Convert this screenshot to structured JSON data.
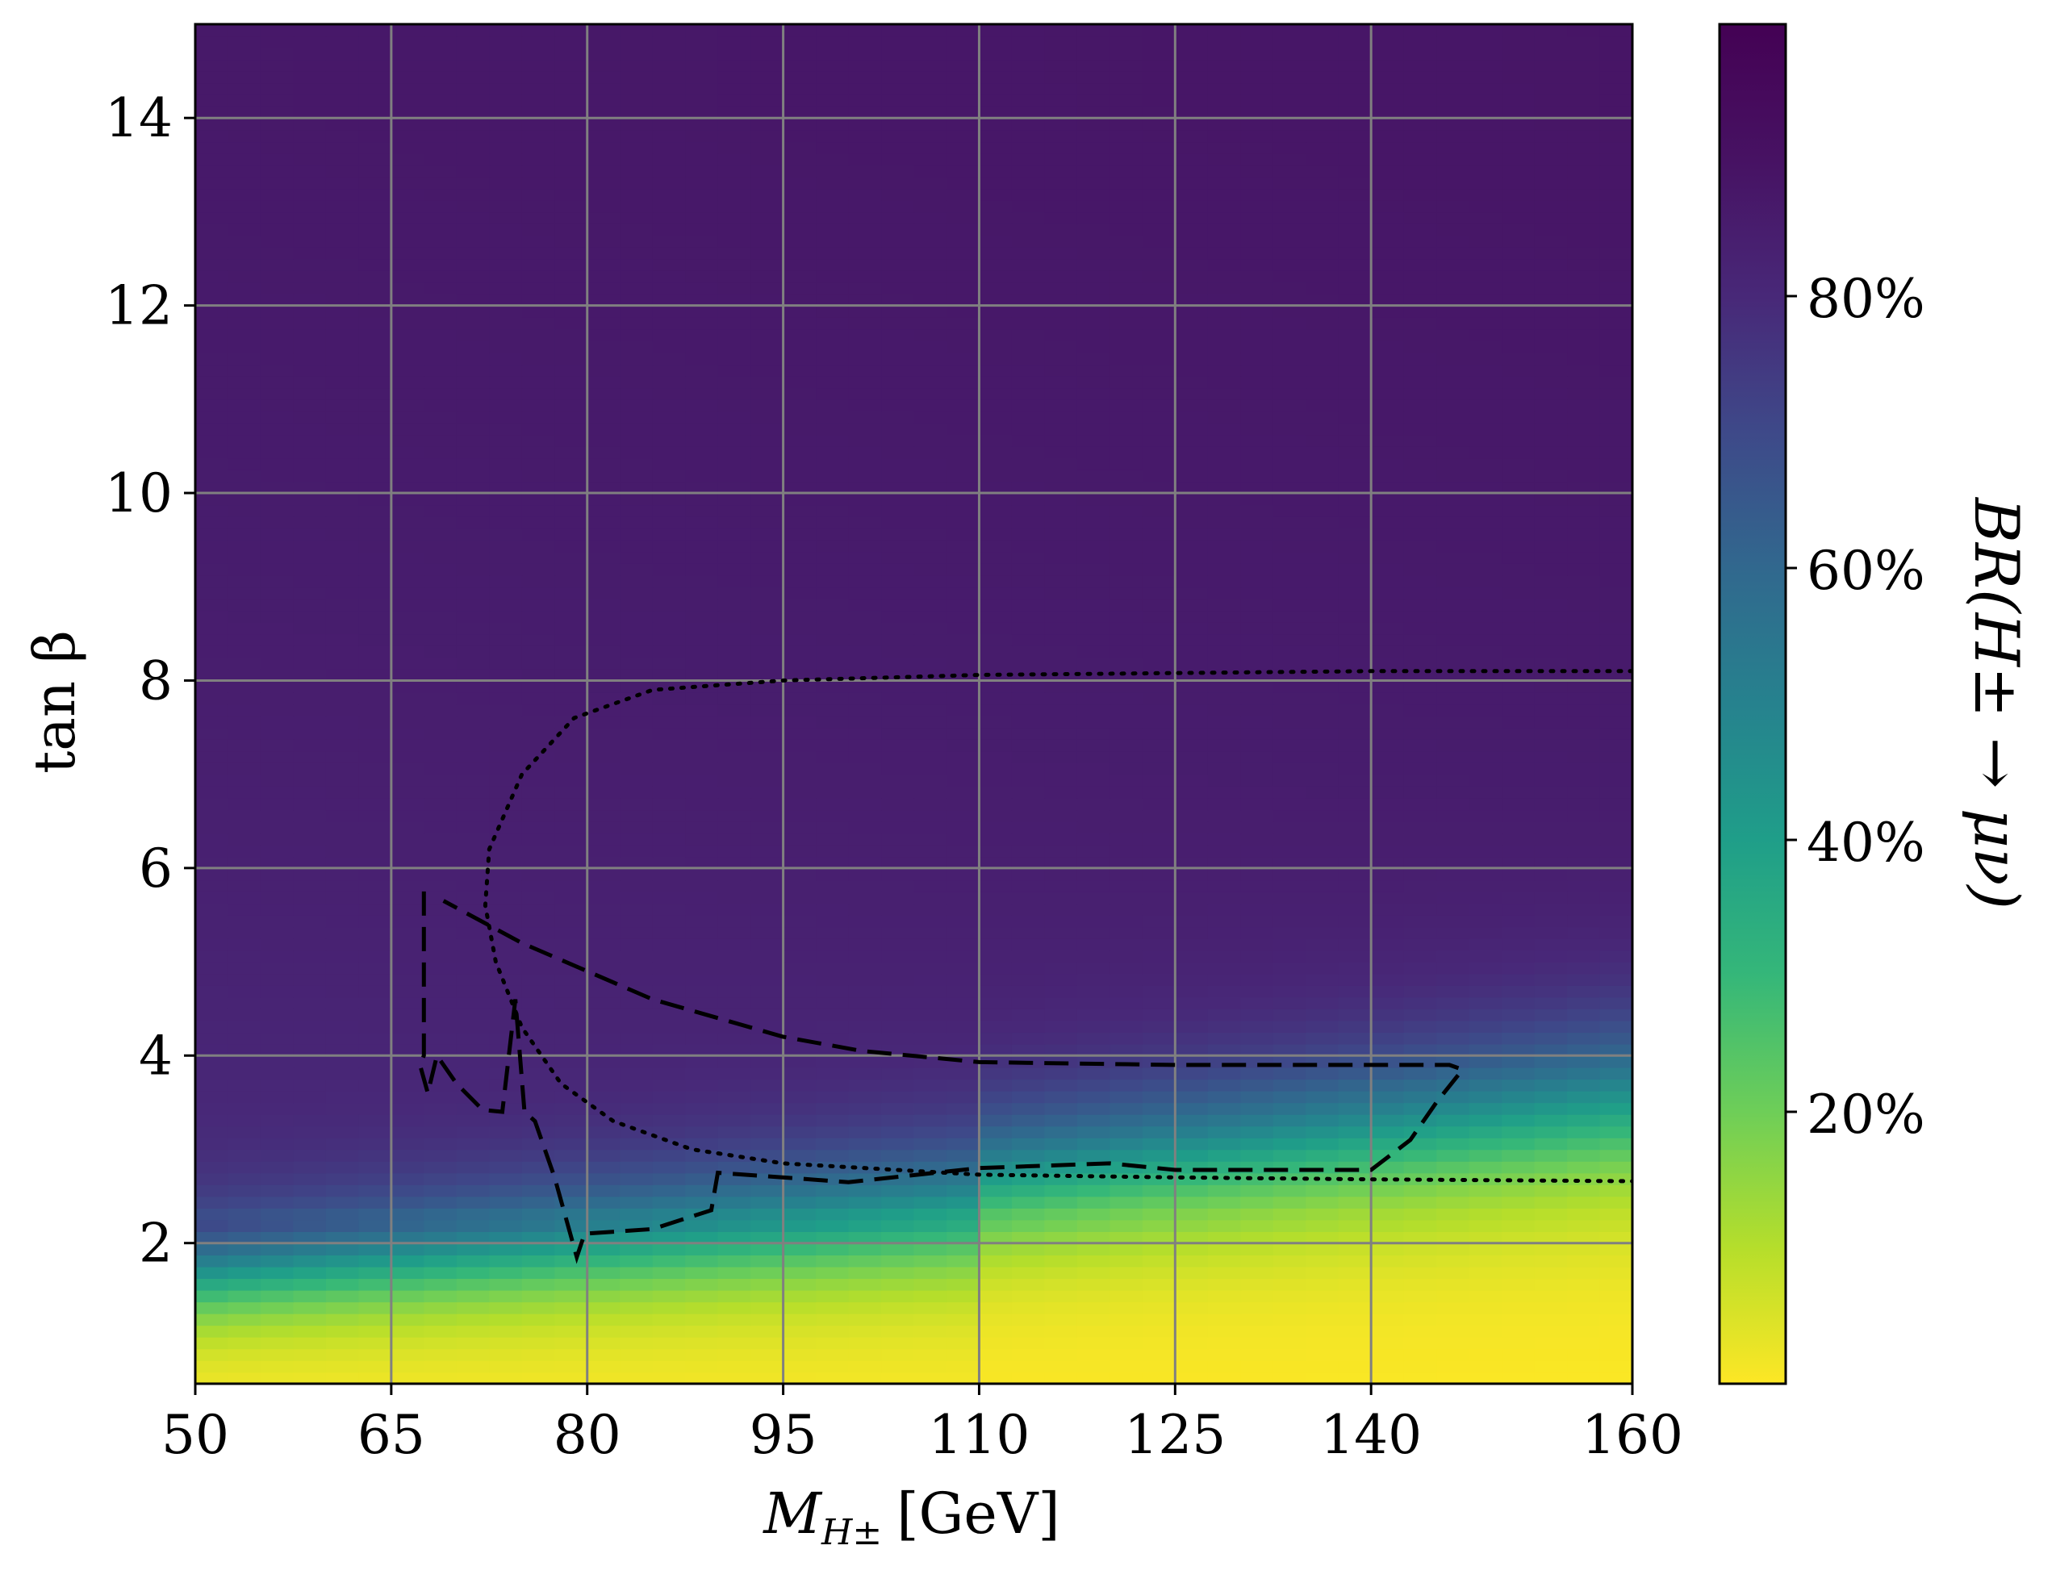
{
  "chart_data": {
    "type": "heatmap",
    "title": "",
    "xlabel_main": "M",
    "xlabel_sub": "H±",
    "xlabel_unit": "[GeV]",
    "ylabel": "tan β",
    "colorbar_label": "BR(H± → μν)",
    "xlim": [
      50,
      160
    ],
    "ylim": [
      0.5,
      15
    ],
    "x_ticks": [
      50,
      65,
      80,
      95,
      110,
      125,
      140,
      160
    ],
    "x_tick_labels": [
      "50",
      "65",
      "80",
      "95",
      "110",
      "125",
      "140",
      "160"
    ],
    "y_ticks": [
      2,
      4,
      6,
      8,
      10,
      12,
      14
    ],
    "y_tick_labels": [
      "2",
      "4",
      "6",
      "8",
      "10",
      "12",
      "14"
    ],
    "colorbar": {
      "colormap": "viridis_r",
      "range": [
        0,
        100
      ],
      "ticks": [
        20,
        40,
        60,
        80
      ],
      "tick_labels": [
        "20%",
        "40%",
        "60%",
        "80%"
      ]
    },
    "grid": true,
    "heatmap_model": {
      "description_values": "branching ratio rises from ~0% at tanβ≈0.5 to ~85% above tanβ≈4",
      "low_value": 0,
      "plateau_value": 84
    },
    "contours": [
      {
        "style": "dotted",
        "points": [
          [
            160,
            8.1
          ],
          [
            140,
            8.1
          ],
          [
            125,
            8.08
          ],
          [
            110,
            8.06
          ],
          [
            95,
            8.0
          ],
          [
            85,
            7.9
          ],
          [
            79,
            7.6
          ],
          [
            75,
            7.0
          ],
          [
            72.5,
            6.2
          ],
          [
            72.2,
            5.6
          ],
          [
            73,
            5.0
          ],
          [
            75,
            4.3
          ],
          [
            78,
            3.7
          ],
          [
            82,
            3.3
          ],
          [
            88,
            3.0
          ],
          [
            95,
            2.85
          ],
          [
            110,
            2.73
          ],
          [
            125,
            2.7
          ],
          [
            140,
            2.68
          ],
          [
            160,
            2.66
          ]
        ]
      },
      {
        "style": "dashed",
        "points": [
          [
            67.5,
            5.75
          ],
          [
            67.5,
            4.0
          ],
          [
            67.2,
            3.9
          ],
          [
            67.8,
            3.6
          ],
          [
            68.5,
            4.0
          ],
          [
            70,
            3.7
          ],
          [
            72,
            3.42
          ],
          [
            73.5,
            3.4
          ],
          [
            74.5,
            4.6
          ],
          [
            75.2,
            3.4
          ],
          [
            76,
            3.3
          ],
          [
            77.5,
            2.7
          ],
          [
            79.2,
            1.85
          ],
          [
            79.8,
            2.1
          ],
          [
            85,
            2.15
          ],
          [
            89.5,
            2.35
          ],
          [
            90,
            2.75
          ],
          [
            100,
            2.65
          ],
          [
            110,
            2.8
          ],
          [
            120,
            2.85
          ],
          [
            125,
            2.78
          ],
          [
            140,
            2.78
          ],
          [
            143,
            3.1
          ],
          [
            145,
            3.5
          ],
          [
            147,
            3.85
          ],
          [
            146,
            3.9
          ],
          [
            125,
            3.9
          ],
          [
            110,
            3.93
          ],
          [
            101,
            4.05
          ],
          [
            95,
            4.2
          ],
          [
            85,
            4.6
          ],
          [
            75,
            5.2
          ],
          [
            69,
            5.65
          ]
        ]
      }
    ]
  }
}
